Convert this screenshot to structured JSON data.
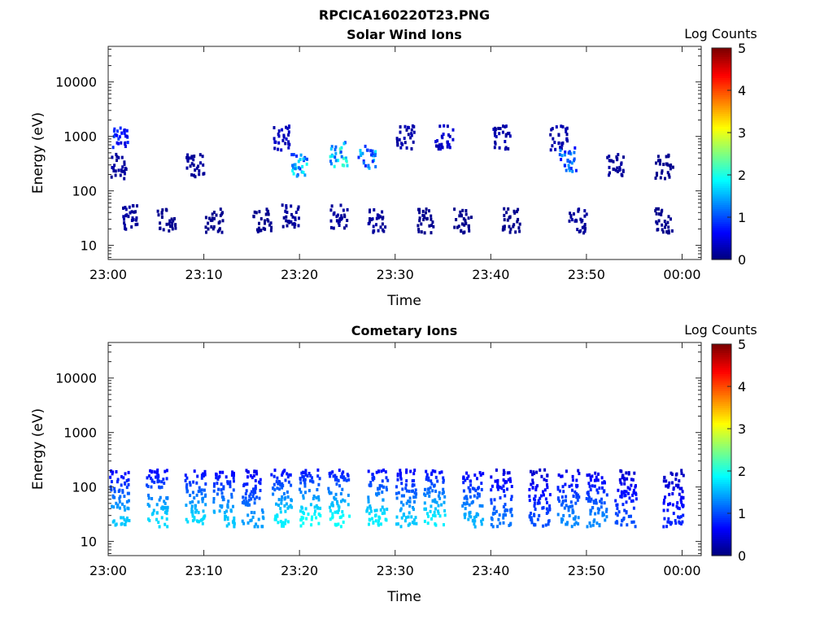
{
  "figure_title": "RPCICA160220T23.PNG",
  "colorbar": {
    "label": "Log Counts",
    "ticks": [
      "0",
      "1",
      "2",
      "3",
      "4",
      "5"
    ],
    "colormap": "jet"
  },
  "panels": [
    {
      "title": "Solar Wind Ions",
      "xlabel": "Time",
      "ylabel": "Energy (eV)",
      "xticks": [
        "23:00",
        "23:10",
        "23:20",
        "23:30",
        "23:40",
        "23:50",
        "00:00"
      ],
      "yticks": [
        "10",
        "100",
        "1000",
        "10000"
      ]
    },
    {
      "title": "Cometary Ions",
      "xlabel": "Time",
      "ylabel": "Energy (eV)",
      "xticks": [
        "23:00",
        "23:10",
        "23:20",
        "23:30",
        "23:40",
        "23:50",
        "00:00"
      ],
      "yticks": [
        "10",
        "100",
        "1000",
        "10000"
      ]
    }
  ],
  "chart_data": [
    {
      "type": "heatmap",
      "title": "Solar Wind Ions",
      "xlabel": "Time",
      "ylabel": "Energy (eV)",
      "x_range": [
        "23:00",
        "00:02"
      ],
      "y_scale": "log",
      "y_range": [
        5.5,
        45000
      ],
      "color_label": "Log Counts",
      "color_range": [
        0,
        5
      ],
      "colormap": "jet",
      "grid": false,
      "clusters": [
        {
          "t_min": 1,
          "e": 1000,
          "level": 1.0
        },
        {
          "t_min": 1,
          "e": 300,
          "level": 0.2
        },
        {
          "t_min": 2,
          "e": 35,
          "level": 0.2
        },
        {
          "t_min": 6,
          "e": 30,
          "level": 0.1
        },
        {
          "t_min": 9,
          "e": 300,
          "level": 0.2
        },
        {
          "t_min": 11,
          "e": 30,
          "level": 0.1
        },
        {
          "t_min": 16,
          "e": 30,
          "level": 0.1
        },
        {
          "t_min": 18,
          "e": 1000,
          "level": 0.4
        },
        {
          "t_min": 19,
          "e": 35,
          "level": 0.2
        },
        {
          "t_min": 20,
          "e": 300,
          "level": 2.0
        },
        {
          "t_min": 24,
          "e": 500,
          "level": 2.3
        },
        {
          "t_min": 24,
          "e": 35,
          "level": 0.2
        },
        {
          "t_min": 27,
          "e": 450,
          "level": 1.8
        },
        {
          "t_min": 28,
          "e": 30,
          "level": 0.2
        },
        {
          "t_min": 31,
          "e": 1000,
          "level": 0.3
        },
        {
          "t_min": 33,
          "e": 30,
          "level": 0.1
        },
        {
          "t_min": 35,
          "e": 1000,
          "level": 0.5
        },
        {
          "t_min": 37,
          "e": 30,
          "level": 0.1
        },
        {
          "t_min": 41,
          "e": 1000,
          "level": 0.3
        },
        {
          "t_min": 42,
          "e": 30,
          "level": 0.1
        },
        {
          "t_min": 47,
          "e": 1000,
          "level": 0.3
        },
        {
          "t_min": 48,
          "e": 400,
          "level": 1.5
        },
        {
          "t_min": 49,
          "e": 30,
          "level": 0.2
        },
        {
          "t_min": 53,
          "e": 300,
          "level": 0.2
        },
        {
          "t_min": 58,
          "e": 300,
          "level": 0.1
        },
        {
          "t_min": 58,
          "e": 30,
          "level": 0.1
        }
      ]
    },
    {
      "type": "heatmap",
      "title": "Cometary Ions",
      "xlabel": "Time",
      "ylabel": "Energy (eV)",
      "x_range": [
        "23:00",
        "00:02"
      ],
      "y_scale": "log",
      "y_range": [
        5.5,
        45000
      ],
      "color_label": "Log Counts",
      "color_range": [
        0,
        5
      ],
      "colormap": "jet",
      "grid": false,
      "clusters": [
        {
          "t_min": 1,
          "e": 30,
          "level": 1.6
        },
        {
          "t_min": 5,
          "e": 30,
          "level": 1.7
        },
        {
          "t_min": 9,
          "e": 30,
          "level": 1.7
        },
        {
          "t_min": 12,
          "e": 30,
          "level": 1.6
        },
        {
          "t_min": 15,
          "e": 30,
          "level": 1.4
        },
        {
          "t_min": 18,
          "e": 30,
          "level": 1.8
        },
        {
          "t_min": 21,
          "e": 30,
          "level": 1.9
        },
        {
          "t_min": 24,
          "e": 30,
          "level": 1.9
        },
        {
          "t_min": 28,
          "e": 30,
          "level": 1.8
        },
        {
          "t_min": 31,
          "e": 30,
          "level": 1.6
        },
        {
          "t_min": 34,
          "e": 30,
          "level": 1.8
        },
        {
          "t_min": 38,
          "e": 30,
          "level": 1.5
        },
        {
          "t_min": 41,
          "e": 30,
          "level": 1.2
        },
        {
          "t_min": 45,
          "e": 30,
          "level": 1.0
        },
        {
          "t_min": 48,
          "e": 30,
          "level": 1.3
        },
        {
          "t_min": 51,
          "e": 30,
          "level": 1.3
        },
        {
          "t_min": 54,
          "e": 30,
          "level": 1.0
        },
        {
          "t_min": 59,
          "e": 30,
          "level": 0.8
        }
      ]
    }
  ]
}
